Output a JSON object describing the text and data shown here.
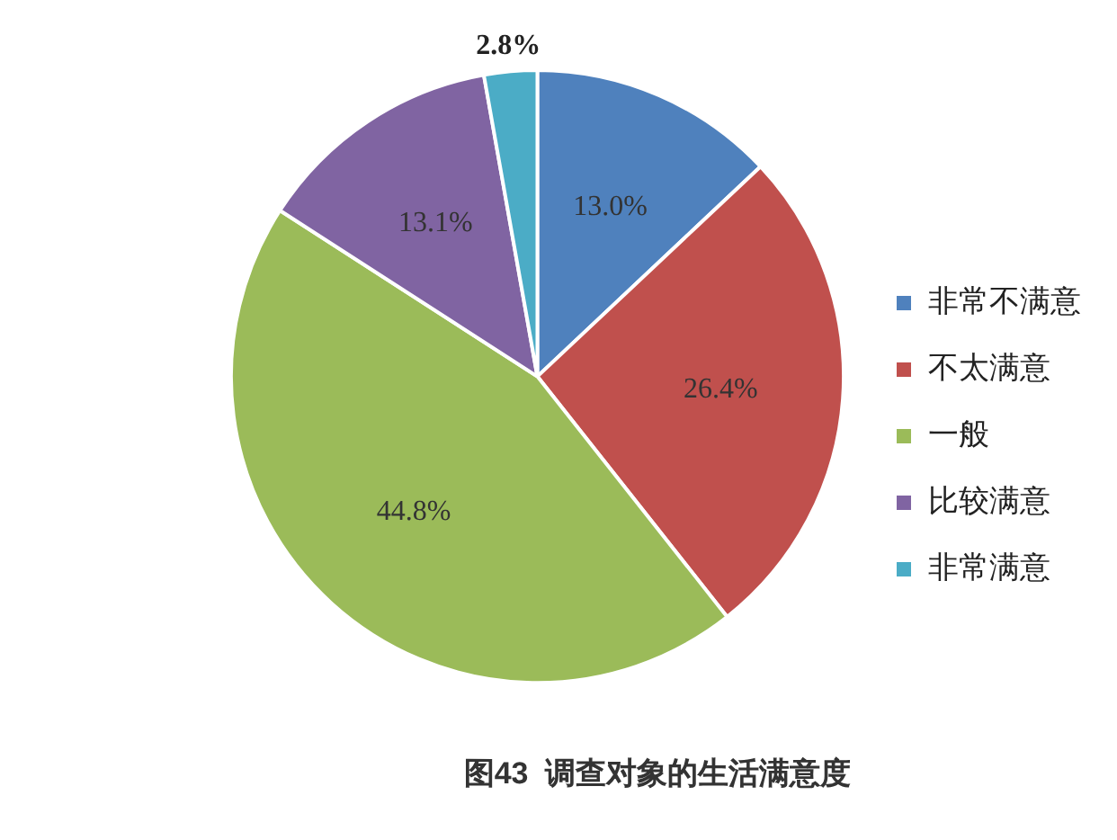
{
  "chart_data": {
    "type": "pie",
    "title": "图43  调查对象的生活满意度",
    "categories": [
      "非常不满意",
      "不太满意",
      "一般",
      "比较满意",
      "非常满意"
    ],
    "values": [
      13.0,
      26.4,
      44.8,
      13.1,
      2.8
    ],
    "value_labels": [
      "13.0%",
      "26.4%",
      "44.8%",
      "13.1%",
      "2.8%"
    ],
    "colors": [
      "#4f81bd",
      "#c0504d",
      "#9bbb59",
      "#8064a2",
      "#4bacc6"
    ],
    "legend": "right"
  }
}
